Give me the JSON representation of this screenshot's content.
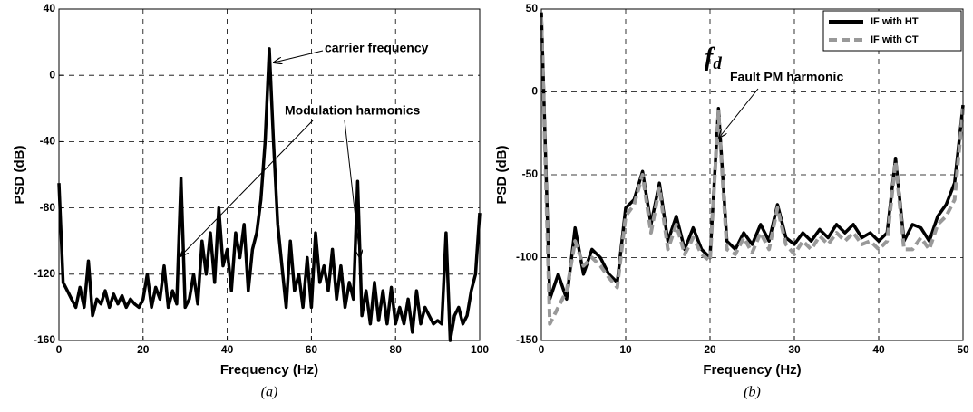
{
  "chart_data": [
    {
      "type": "line",
      "xlabel": "Frequency (Hz)",
      "ylabel": "PSD (dB)",
      "caption": "(a)",
      "xlim": [
        0,
        100
      ],
      "xticks": [
        0,
        20,
        40,
        60,
        80,
        100
      ],
      "ylim": [
        -160,
        40
      ],
      "yticks": [
        -160,
        -120,
        -80,
        -40,
        0,
        40
      ],
      "grid": true,
      "annotations": [
        "carrier frequency",
        "Modulation harmonics"
      ],
      "color": "#000000",
      "x": [
        0,
        1,
        2,
        3,
        4,
        5,
        6,
        7,
        8,
        9,
        10,
        11,
        12,
        13,
        14,
        15,
        16,
        17,
        18,
        19,
        20,
        21,
        22,
        23,
        24,
        25,
        26,
        27,
        28,
        29,
        30,
        31,
        32,
        33,
        34,
        35,
        36,
        37,
        38,
        39,
        40,
        41,
        42,
        43,
        44,
        45,
        46,
        47,
        48,
        49,
        50,
        51,
        52,
        53,
        54,
        55,
        56,
        57,
        58,
        59,
        60,
        61,
        62,
        63,
        64,
        65,
        66,
        67,
        68,
        69,
        70,
        71,
        72,
        73,
        74,
        75,
        76,
        77,
        78,
        79,
        80,
        81,
        82,
        83,
        84,
        85,
        86,
        87,
        88,
        89,
        90,
        91,
        92,
        93,
        94,
        95,
        96,
        97,
        98,
        99,
        100
      ],
      "values": [
        -65,
        -125,
        -130,
        -135,
        -140,
        -128,
        -140,
        -112,
        -145,
        -135,
        -138,
        -130,
        -140,
        -132,
        -138,
        -133,
        -140,
        -135,
        -138,
        -140,
        -135,
        -120,
        -140,
        -128,
        -135,
        -115,
        -140,
        -130,
        -138,
        -62,
        -140,
        -135,
        -120,
        -138,
        -100,
        -120,
        -95,
        -125,
        -80,
        -115,
        -105,
        -130,
        -95,
        -110,
        -90,
        -130,
        -105,
        -95,
        -75,
        -40,
        16,
        -40,
        -90,
        -115,
        -140,
        -100,
        -130,
        -120,
        -140,
        -110,
        -140,
        -95,
        -125,
        -115,
        -130,
        -105,
        -135,
        -115,
        -140,
        -125,
        -135,
        -64,
        -145,
        -130,
        -150,
        -125,
        -148,
        -130,
        -150,
        -128,
        -150,
        -140,
        -150,
        -135,
        -155,
        -130,
        -150,
        -140,
        -145,
        -150,
        -148,
        -150,
        -95,
        -160,
        -145,
        -140,
        -150,
        -145,
        -130,
        -120,
        -83
      ]
    },
    {
      "type": "line",
      "xlabel": "Frequency (Hz)",
      "ylabel": "PSD (dB)",
      "caption": "(b)",
      "xlim": [
        0,
        50
      ],
      "xticks": [
        0,
        10,
        20,
        30,
        40,
        50
      ],
      "ylim": [
        -150,
        50
      ],
      "yticks": [
        -150,
        -100,
        -50,
        0,
        50
      ],
      "grid": true,
      "legend": "upper right",
      "annotations": [
        "Fault PM harmonic"
      ],
      "symbol": {
        "base": "f",
        "subscript": "d"
      },
      "x": [
        0,
        1,
        2,
        3,
        4,
        5,
        6,
        7,
        8,
        9,
        10,
        11,
        12,
        13,
        14,
        15,
        16,
        17,
        18,
        19,
        20,
        21,
        22,
        23,
        24,
        25,
        26,
        27,
        28,
        29,
        30,
        31,
        32,
        33,
        34,
        35,
        36,
        37,
        38,
        39,
        40,
        41,
        42,
        43,
        44,
        45,
        46,
        47,
        48,
        49,
        50
      ],
      "series": [
        {
          "name": "IF with HT",
          "color": "#000000",
          "linestyle": "solid",
          "values": [
            48,
            -125,
            -110,
            -125,
            -82,
            -110,
            -95,
            -100,
            -110,
            -115,
            -70,
            -65,
            -48,
            -80,
            -55,
            -90,
            -75,
            -95,
            -82,
            -95,
            -100,
            -10,
            -90,
            -95,
            -85,
            -92,
            -80,
            -90,
            -68,
            -88,
            -92,
            -85,
            -90,
            -83,
            -88,
            -80,
            -85,
            -80,
            -88,
            -85,
            -90,
            -85,
            -40,
            -90,
            -80,
            -82,
            -90,
            -75,
            -68,
            -55,
            -8
          ]
        },
        {
          "name": "IF with CT",
          "color": "#999999",
          "linestyle": "dashed",
          "values": [
            45,
            -140,
            -130,
            -120,
            -90,
            -105,
            -100,
            -105,
            -112,
            -118,
            -75,
            -68,
            -50,
            -85,
            -58,
            -95,
            -80,
            -98,
            -88,
            -98,
            -102,
            -12,
            -95,
            -98,
            -88,
            -97,
            -85,
            -95,
            -70,
            -92,
            -98,
            -90,
            -95,
            -87,
            -92,
            -85,
            -90,
            -85,
            -92,
            -90,
            -95,
            -90,
            -42,
            -95,
            -95,
            -88,
            -95,
            -80,
            -75,
            -65,
            -10
          ]
        }
      ]
    }
  ]
}
